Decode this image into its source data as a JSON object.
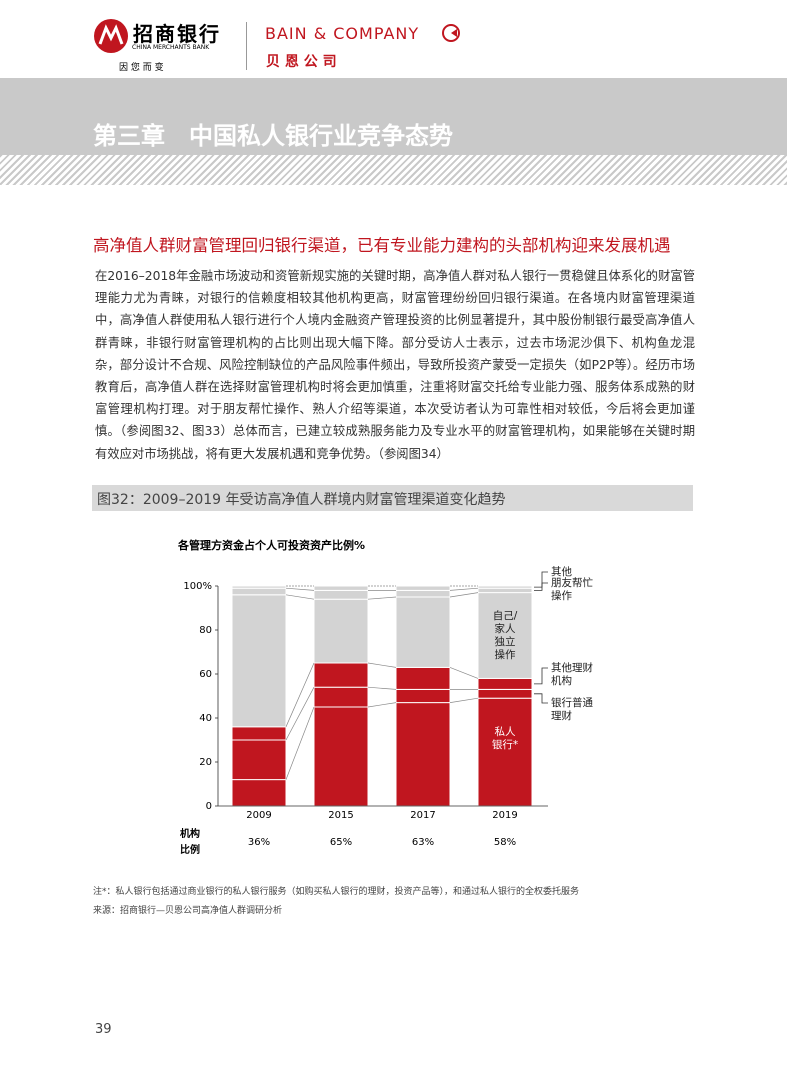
{
  "header": {
    "bank_name": "招商银行",
    "bank_name_en": "CHINA MERCHANTS BANK",
    "bank_slogan": "因 您 而 变",
    "partner_name": "BAIN & COMPANY",
    "partner_name_cn": "贝 恩 公 司"
  },
  "chapter_title": "第三章　中国私人银行业竞争态势",
  "section_heading": "高净值人群财富管理回归银行渠道，已有专业能力建构的头部机构迎来发展机遇",
  "paragraph": "在2016–2018年金融市场波动和资管新规实施的关键时期，高净值人群对私人银行一贯稳健且体系化的财富管理能力尤为青睐，对银行的信赖度相较其他机构更高，财富管理纷纷回归银行渠道。在各境内财富管理渠道中，高净值人群使用私人银行进行个人境内金融资产管理投资的比例显著提升，其中股份制银行最受高净值人群青睐，非银行财富管理机构的占比则出现大幅下降。部分受访人士表示，过去市场泥沙俱下、机构鱼龙混杂，部分设计不合规、风险控制缺位的产品风险事件频出，导致所投资产蒙受一定损失（如P2P等）。经历市场教育后，高净值人群在选择财富管理机构时将会更加慎重，注重将财富交托给专业能力强、服务体系成熟的财富管理机构打理。对于朋友帮忙操作、熟人介绍等渠道，本次受访者认为可靠性相对较低，今后将会更加谨慎。（参阅图32、图33）总体而言，已建立较成熟服务能力及专业水平的财富管理机构，如果能够在关键时期有效应对市场挑战，将有更大发展机遇和竞争优势。（参阅图34）",
  "figure_caption": "图32：2009–2019 年受访高净值人群境内财富管理渠道变化趋势",
  "chart_data": {
    "type": "stacked_bar",
    "title": "各管理方资金占个人可投资资产比例%",
    "categories": [
      "2009",
      "2015",
      "2017",
      "2019"
    ],
    "series": [
      {
        "name": "私人银行*",
        "color": "#c0161f",
        "values": [
          12,
          45,
          47,
          49
        ]
      },
      {
        "name": "银行普通理财",
        "color": "#c0161f",
        "values": [
          18,
          9,
          6,
          4
        ]
      },
      {
        "name": "其他理财机构",
        "color": "#c0161f",
        "values": [
          6,
          11,
          10,
          5
        ]
      },
      {
        "name": "自己/家人独立操作",
        "color": "#d3d3d3",
        "values": [
          60,
          29,
          32,
          39
        ]
      },
      {
        "name": "朋友帮忙操作",
        "color": "#d3d3d3",
        "values": [
          3,
          4,
          3,
          2
        ]
      },
      {
        "name": "其他",
        "color": "#d3d3d3",
        "values": [
          1,
          2,
          2,
          1
        ]
      }
    ],
    "ylim": [
      0,
      100
    ],
    "yticks": [
      0,
      20,
      40,
      60,
      80,
      {
        "value": 100,
        "label": "100%"
      }
    ],
    "ratio_label": [
      "机构",
      "比例"
    ],
    "ratio": {
      "values": [
        36,
        65,
        63,
        58
      ],
      "value_labels": [
        "36%",
        "65%",
        "63%",
        "58%"
      ]
    }
  },
  "notes": [
    "注*：私人银行包括通过商业银行的私人银行服务（如购买私人银行的理财，投资产品等），和通过私人银行的全权委托服务",
    "来源：招商银行—贝恩公司高净值人群调研分析"
  ],
  "page_number": "39"
}
